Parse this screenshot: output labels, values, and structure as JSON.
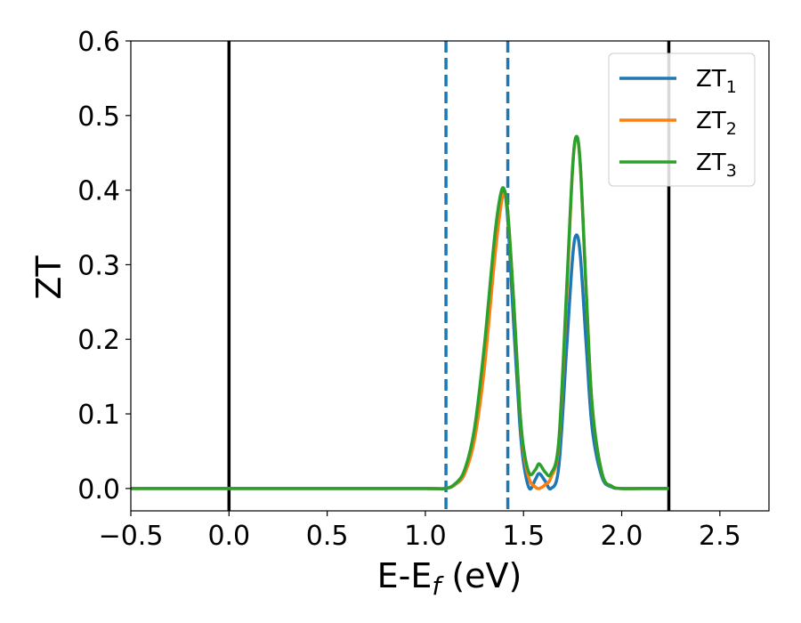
{
  "chart_data": {
    "type": "line",
    "xlabel_main": "E-E",
    "xlabel_sub": "f",
    "xlabel_unit": " (eV)",
    "ylabel": "ZT",
    "xlim": [
      -0.5,
      2.75
    ],
    "ylim": [
      -0.03,
      0.6
    ],
    "x_ticks": [
      -0.5,
      0.0,
      0.5,
      1.0,
      1.5,
      2.0,
      2.5
    ],
    "x_tick_labels": [
      "−0.5",
      "0.0",
      "0.5",
      "1.0",
      "1.5",
      "2.0",
      "2.5"
    ],
    "y_ticks": [
      0.0,
      0.1,
      0.2,
      0.3,
      0.4,
      0.5,
      0.6
    ],
    "y_tick_labels": [
      "0.0",
      "0.1",
      "0.2",
      "0.3",
      "0.4",
      "0.5",
      "0.6"
    ],
    "grid": false,
    "legend_position": "top-right",
    "vertical_lines": [
      {
        "x": 0.0,
        "style": "solid",
        "color": "#000000"
      },
      {
        "x": 2.24,
        "style": "solid",
        "color": "#000000"
      },
      {
        "x": 1.105,
        "style": "dashed",
        "color": "#1f77b4"
      },
      {
        "x": 1.42,
        "style": "dashed",
        "color": "#1f77b4"
      }
    ],
    "series": [
      {
        "name": "ZT",
        "sub": "1",
        "color": "#1f77b4",
        "x": [
          -0.5,
          0.0,
          0.5,
          1.0,
          1.1,
          1.15,
          1.2,
          1.25,
          1.3,
          1.35,
          1.38,
          1.4,
          1.42,
          1.45,
          1.48,
          1.5,
          1.53,
          1.56,
          1.58,
          1.61,
          1.64,
          1.68,
          1.72,
          1.75,
          1.77,
          1.79,
          1.82,
          1.85,
          1.9,
          1.95,
          2.0,
          2.1,
          2.2,
          2.24
        ],
        "y": [
          0.0,
          0.0,
          0.0,
          0.0,
          0.0,
          0.005,
          0.02,
          0.07,
          0.17,
          0.31,
          0.38,
          0.4,
          0.36,
          0.22,
          0.09,
          0.035,
          0.0,
          0.012,
          0.02,
          0.01,
          0.0,
          0.03,
          0.19,
          0.31,
          0.34,
          0.31,
          0.19,
          0.08,
          0.015,
          0.002,
          0.0,
          0.0,
          0.0,
          0.0
        ]
      },
      {
        "name": "ZT",
        "sub": "2",
        "color": "#ff7f0e",
        "x": [
          -0.5,
          0.0,
          0.5,
          1.0,
          1.1,
          1.15,
          1.2,
          1.25,
          1.3,
          1.35,
          1.38,
          1.4,
          1.42,
          1.45,
          1.48,
          1.5,
          1.53,
          1.56,
          1.58,
          1.61,
          1.64,
          1.68,
          1.72,
          1.75,
          1.77,
          1.79,
          1.82,
          1.85,
          1.9,
          1.95,
          2.0,
          2.1,
          2.2,
          2.24
        ],
        "y": [
          0.0,
          0.0,
          0.0,
          0.0,
          0.0,
          0.005,
          0.02,
          0.065,
          0.16,
          0.3,
          0.37,
          0.395,
          0.37,
          0.25,
          0.11,
          0.05,
          0.012,
          0.002,
          0.0,
          0.005,
          0.015,
          0.06,
          0.26,
          0.43,
          0.47,
          0.43,
          0.26,
          0.11,
          0.02,
          0.003,
          0.0,
          0.0,
          0.0,
          0.0
        ]
      },
      {
        "name": "ZT",
        "sub": "3",
        "color": "#2ca02c",
        "x": [
          -0.5,
          0.0,
          0.5,
          1.0,
          1.1,
          1.15,
          1.2,
          1.25,
          1.3,
          1.35,
          1.38,
          1.4,
          1.42,
          1.45,
          1.48,
          1.5,
          1.53,
          1.56,
          1.58,
          1.61,
          1.64,
          1.68,
          1.72,
          1.75,
          1.77,
          1.79,
          1.82,
          1.85,
          1.9,
          1.95,
          2.0,
          2.1,
          2.2,
          2.24
        ],
        "y": [
          0.0,
          0.0,
          0.0,
          0.0,
          0.0,
          0.006,
          0.025,
          0.08,
          0.19,
          0.33,
          0.39,
          0.402,
          0.37,
          0.25,
          0.11,
          0.055,
          0.02,
          0.025,
          0.033,
          0.022,
          0.02,
          0.065,
          0.27,
          0.43,
          0.472,
          0.43,
          0.26,
          0.11,
          0.02,
          0.003,
          0.0,
          0.0,
          0.0,
          0.0
        ]
      }
    ]
  }
}
